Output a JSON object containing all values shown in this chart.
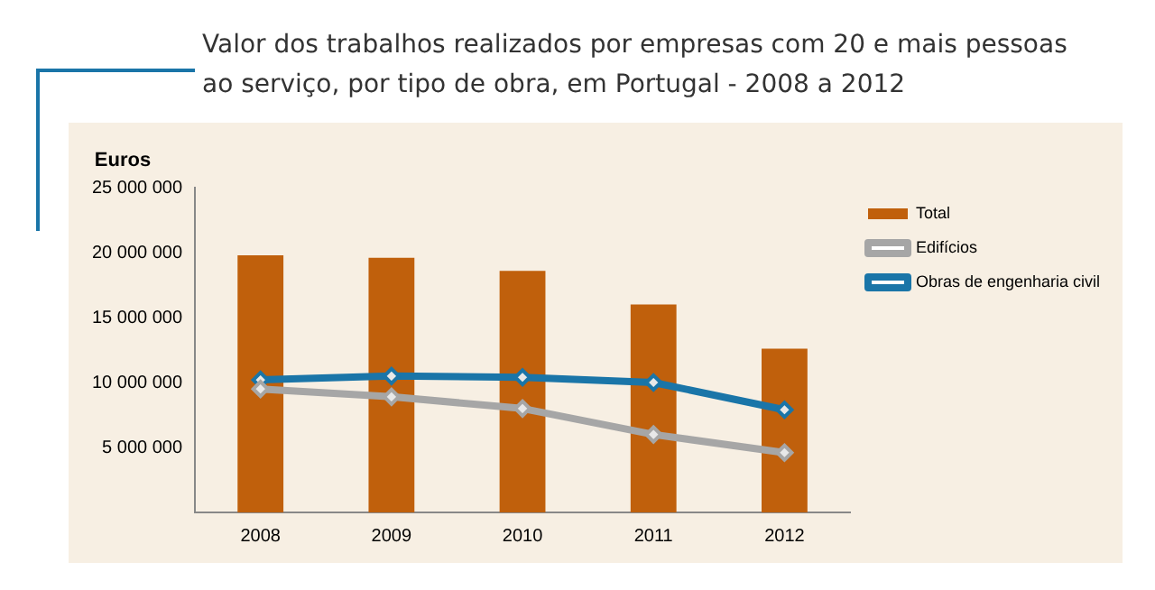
{
  "chart_data": {
    "type": "bar",
    "title": "Valor dos trabalhos realizados por empresas com 20 e mais pessoas ao serviço, por tipo de obra, em Portugal - 2008 a 2012",
    "ylabel": "Euros",
    "categories": [
      "2008",
      "2009",
      "2010",
      "2011",
      "2012"
    ],
    "series": [
      {
        "name": "Total",
        "color": "#c0600c",
        "values": [
          19800000,
          19600000,
          18600000,
          16000000,
          12600000
        ]
      },
      {
        "name": "Edifícios",
        "type": "line",
        "color": "#a6a6a6",
        "values": [
          9500000,
          8900000,
          8000000,
          6000000,
          4600000
        ]
      },
      {
        "name": "Obras de engenharia civil",
        "type": "line",
        "color": "#1a75a8",
        "values": [
          10200000,
          10500000,
          10400000,
          10000000,
          7900000
        ]
      }
    ],
    "ylim": [
      0,
      25000000
    ],
    "yticks": [
      5000000,
      10000000,
      15000000,
      20000000,
      25000000
    ],
    "grid": false,
    "legend": "right",
    "marker": "diamond"
  }
}
